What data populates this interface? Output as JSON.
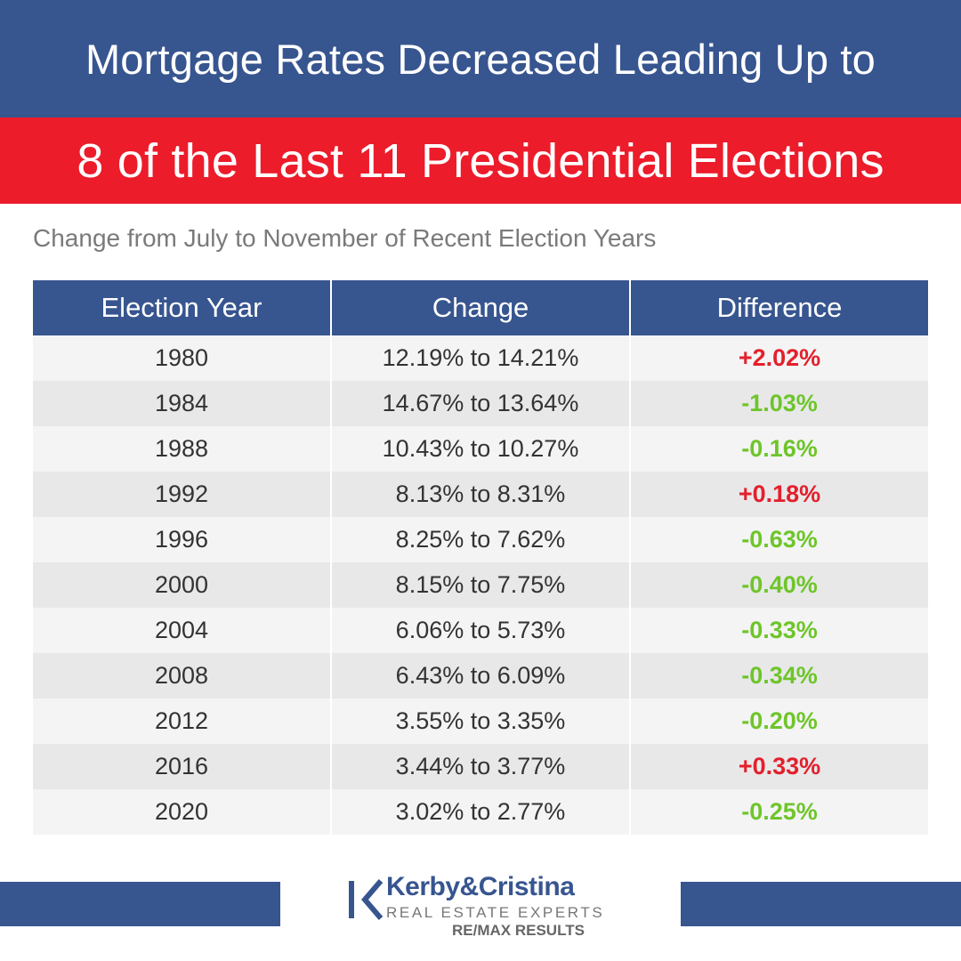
{
  "header": {
    "title_line1": "Mortgage Rates Decreased Leading Up to",
    "title_line2": "8 of the Last 11 Presidential Elections"
  },
  "subtitle": "Change from July to November of Recent Election Years",
  "colors": {
    "navy": "#37558f",
    "red": "#ec1c2b",
    "positive_diff": "#e3202c",
    "negative_diff": "#6ec52a"
  },
  "chart_data": {
    "type": "table",
    "columns": [
      "Election Year",
      "Change",
      "Difference"
    ],
    "rows": [
      {
        "year": "1980",
        "change": "12.19% to 14.21%",
        "difference": "+2.02%",
        "direction": "up"
      },
      {
        "year": "1984",
        "change": "14.67% to 13.64%",
        "difference": "-1.03%",
        "direction": "down"
      },
      {
        "year": "1988",
        "change": "10.43% to 10.27%",
        "difference": "-0.16%",
        "direction": "down"
      },
      {
        "year": "1992",
        "change": "8.13% to 8.31%",
        "difference": "+0.18%",
        "direction": "up"
      },
      {
        "year": "1996",
        "change": "8.25% to 7.62%",
        "difference": "-0.63%",
        "direction": "down"
      },
      {
        "year": "2000",
        "change": "8.15% to 7.75%",
        "difference": "-0.40%",
        "direction": "down"
      },
      {
        "year": "2004",
        "change": "6.06% to 5.73%",
        "difference": "-0.33%",
        "direction": "down"
      },
      {
        "year": "2008",
        "change": "6.43% to 6.09%",
        "difference": "-0.34%",
        "direction": "down"
      },
      {
        "year": "2012",
        "change": "3.55% to 3.35%",
        "difference": "-0.20%",
        "direction": "down"
      },
      {
        "year": "2016",
        "change": "3.44% to 3.77%",
        "difference": "+0.33%",
        "direction": "up"
      },
      {
        "year": "2020",
        "change": "3.02% to 2.77%",
        "difference": "-0.25%",
        "direction": "down"
      }
    ]
  },
  "logo": {
    "icon": "kc-logo-mark-icon",
    "name": "Kerby&Cristina",
    "tagline": "REAL ESTATE EXPERTS",
    "brokerage": "RE/MAX RESULTS"
  }
}
